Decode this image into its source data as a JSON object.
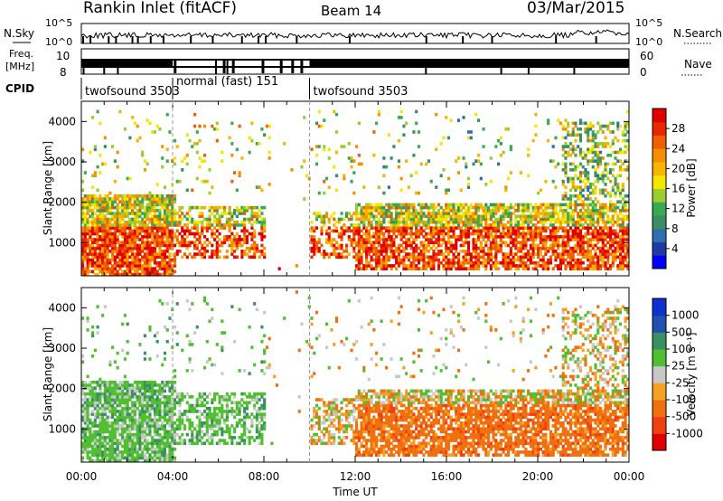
{
  "header": {
    "station": "Rankin Inlet (fitACF)",
    "beam": "Beam 14",
    "date": "03/Mar/2015"
  },
  "strips": {
    "nsky": {
      "label": "N.Sky",
      "ticks": [
        "10^5",
        "10^0"
      ]
    },
    "nsearch": {
      "label": "N.Search",
      "ticks": [
        "10^5",
        "10^0"
      ]
    },
    "freq": {
      "label1": "Freq.",
      "label2": "[MHz]",
      "ticks": [
        "10",
        "8"
      ]
    },
    "nave": {
      "label": "Nave",
      "ticks": [
        "60",
        "0"
      ]
    },
    "cpid": {
      "label": "CPID",
      "segments": [
        {
          "name": "twofsound 3503",
          "start": 0,
          "end": 4
        },
        {
          "name": "normal (fast) 151",
          "start": 4,
          "end": 10
        },
        {
          "name": "twofsound 3503",
          "start": 10,
          "end": 24
        }
      ]
    }
  },
  "chart_data": [
    {
      "type": "heatmap",
      "panel": "power",
      "ylabel": "Slant Range [km]",
      "ylim": [
        180,
        4500
      ],
      "yticks": [
        1000,
        2000,
        3000,
        4000
      ],
      "xlim": [
        0,
        24
      ],
      "xticks": [
        "00:00",
        "04:00",
        "08:00",
        "12:00",
        "16:00",
        "20:00",
        "00:00"
      ],
      "colorbar": {
        "label": "Power [dB]",
        "ticks": [
          "28",
          "24",
          "20",
          "16",
          "12",
          "8",
          "4"
        ],
        "colors": [
          "#0000ff",
          "#1e3ca0",
          "#2f6fb0",
          "#3a8f60",
          "#3aaa50",
          "#9acd32",
          "#f5e600",
          "#f7b500",
          "#f59000",
          "#f06000",
          "#e82800",
          "#e00000"
        ]
      },
      "note_values": "echo power, dB"
    },
    {
      "type": "heatmap",
      "panel": "velocity",
      "ylabel": "Slant Range [km]",
      "ylim": [
        180,
        4500
      ],
      "yticks": [
        1000,
        2000,
        3000,
        4000
      ],
      "xlim": [
        0,
        24
      ],
      "xticks": [
        "00:00",
        "04:00",
        "08:00",
        "12:00",
        "16:00",
        "20:00",
        "00:00"
      ],
      "xlabel": "Time UT",
      "colorbar": {
        "label": "Velocity [m s⁻¹]",
        "ticks": [
          "1000",
          "500",
          "100",
          "25",
          "-25",
          "-100",
          "-500",
          "-1000"
        ],
        "colors": [
          "#e00000",
          "#f04010",
          "#f07010",
          "#f5a020",
          "#c8c8c8",
          "#50c030",
          "#3a9060",
          "#2050b0",
          "#1030d0"
        ]
      }
    }
  ]
}
